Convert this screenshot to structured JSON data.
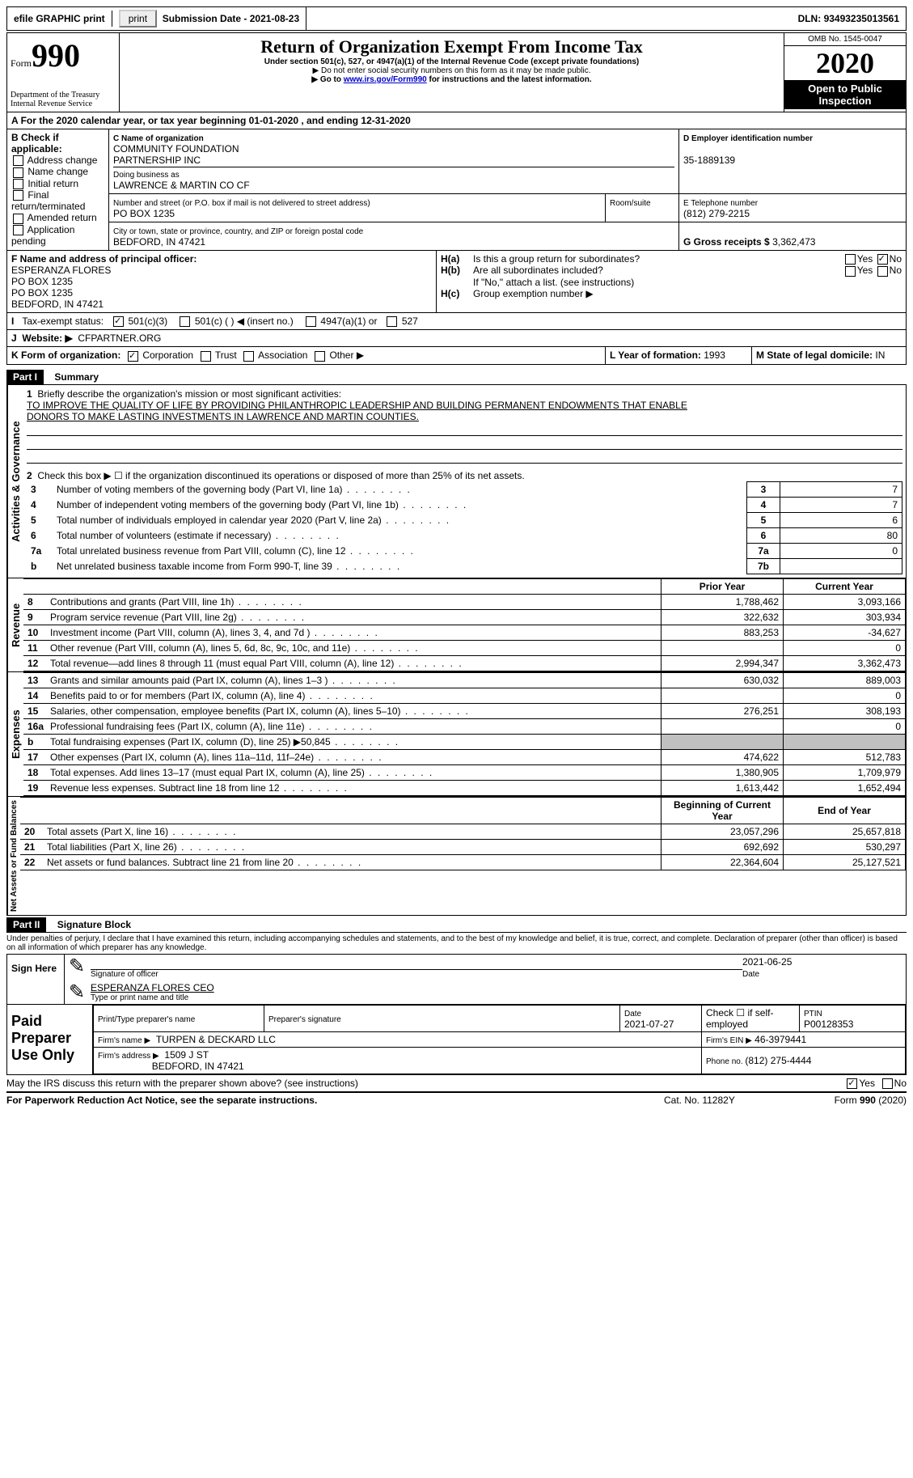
{
  "topbar": {
    "efile": "efile GRAPHIC print",
    "submission_label": "Submission Date - ",
    "submission_date": "2021-08-23",
    "dln_label": "DLN: ",
    "dln": "93493235013561"
  },
  "header": {
    "form_word": "Form",
    "form_num": "990",
    "dept": "Department of the Treasury Internal Revenue Service",
    "title": "Return of Organization Exempt From Income Tax",
    "subtitle": "Under section 501(c), 527, or 4947(a)(1) of the Internal Revenue Code (except private foundations)",
    "note1": "▶ Do not enter social security numbers on this form as it may be made public.",
    "note2_pre": "▶ Go to ",
    "note2_link": "www.irs.gov/Form990",
    "note2_post": " for instructions and the latest information.",
    "omb": "OMB No. 1545-0047",
    "year": "2020",
    "open": "Open to Public Inspection"
  },
  "periodA": "For the 2020 calendar year, or tax year beginning 01-01-2020    , and ending 12-31-2020",
  "blockB": {
    "label": "B Check if applicable:",
    "opts": [
      "Address change",
      "Name change",
      "Initial return",
      "Final return/terminated",
      "Amended return",
      "Application pending"
    ]
  },
  "blockC": {
    "name_label": "C Name of organization",
    "name1": "COMMUNITY FOUNDATION",
    "name2": "PARTNERSHIP INC",
    "dba_label": "Doing business as",
    "dba": "LAWRENCE & MARTIN CO CF",
    "street_label": "Number and street (or P.O. box if mail is not delivered to street address)",
    "street": "PO BOX 1235",
    "room_label": "Room/suite",
    "city_label": "City or town, state or province, country, and ZIP or foreign postal code",
    "city": "BEDFORD, IN  47421"
  },
  "blockD": {
    "label": "D Employer identification number",
    "value": "35-1889139"
  },
  "blockE": {
    "label": "E Telephone number",
    "value": "(812) 279-2215"
  },
  "blockG": {
    "label": "G Gross receipts $ ",
    "value": "3,362,473"
  },
  "blockF": {
    "label": "F Name and address of principal officer:",
    "l1": "ESPERANZA FLORES",
    "l2": "PO BOX 1235",
    "l3": "PO BOX 1235",
    "l4": "BEDFORD, IN  47421"
  },
  "blockH": {
    "a": "Is this a group return for subordinates?",
    "b": "Are all subordinates included?",
    "note": "If \"No,\" attach a list. (see instructions)",
    "c": "Group exemption number ▶"
  },
  "taxexempt": {
    "label": "Tax-exempt status:",
    "o1": "501(c)(3)",
    "o2": "501(c) (  ) ◀ (insert no.)",
    "o3": "4947(a)(1) or",
    "o4": "527"
  },
  "websiteJ": {
    "label": "Website: ▶",
    "value": "CFPARTNER.ORG"
  },
  "formK": {
    "label": "K Form of organization:",
    "o1": "Corporation",
    "o2": "Trust",
    "o3": "Association",
    "o4": "Other ▶"
  },
  "yearL": {
    "label": "L Year of formation: ",
    "value": "1993"
  },
  "stateM": {
    "label": "M State of legal domicile: ",
    "value": "IN"
  },
  "part1": {
    "title": "Part I",
    "subtitle": "Summary",
    "l1": "Briefly describe the organization's mission or most significant activities:",
    "mission1": "TO IMPROVE THE QUALITY OF LIFE BY PROVIDING PHILANTHROPIC LEADERSHIP AND BUILDING PERMANENT ENDOWMENTS THAT ENABLE",
    "mission2": "DONORS TO MAKE LASTING INVESTMENTS IN LAWRENCE AND MARTIN COUNTIES.",
    "l2": "Check this box ▶ ☐  if the organization discontinued its operations or disposed of more than 25% of its net assets.",
    "rows_gov": [
      {
        "n": "3",
        "t": "Number of voting members of the governing body (Part VI, line 1a)",
        "box": "3",
        "v": "7"
      },
      {
        "n": "4",
        "t": "Number of independent voting members of the governing body (Part VI, line 1b)",
        "box": "4",
        "v": "7"
      },
      {
        "n": "5",
        "t": "Total number of individuals employed in calendar year 2020 (Part V, line 2a)",
        "box": "5",
        "v": "6"
      },
      {
        "n": "6",
        "t": "Total number of volunteers (estimate if necessary)",
        "box": "6",
        "v": "80"
      },
      {
        "n": "7a",
        "t": "Total unrelated business revenue from Part VIII, column (C), line 12",
        "box": "7a",
        "v": "0"
      },
      {
        "n": "b",
        "t": "Net unrelated business taxable income from Form 990-T, line 39",
        "box": "7b",
        "v": ""
      }
    ],
    "hdr_prior": "Prior Year",
    "hdr_current": "Current Year",
    "rows_rev": [
      {
        "n": "8",
        "t": "Contributions and grants (Part VIII, line 1h)",
        "p": "1,788,462",
        "c": "3,093,166"
      },
      {
        "n": "9",
        "t": "Program service revenue (Part VIII, line 2g)",
        "p": "322,632",
        "c": "303,934"
      },
      {
        "n": "10",
        "t": "Investment income (Part VIII, column (A), lines 3, 4, and 7d )",
        "p": "883,253",
        "c": "-34,627"
      },
      {
        "n": "11",
        "t": "Other revenue (Part VIII, column (A), lines 5, 6d, 8c, 9c, 10c, and 11e)",
        "p": "",
        "c": "0"
      },
      {
        "n": "12",
        "t": "Total revenue—add lines 8 through 11 (must equal Part VIII, column (A), line 12)",
        "p": "2,994,347",
        "c": "3,362,473"
      }
    ],
    "rows_exp": [
      {
        "n": "13",
        "t": "Grants and similar amounts paid (Part IX, column (A), lines 1–3 )",
        "p": "630,032",
        "c": "889,003"
      },
      {
        "n": "14",
        "t": "Benefits paid to or for members (Part IX, column (A), line 4)",
        "p": "",
        "c": "0"
      },
      {
        "n": "15",
        "t": "Salaries, other compensation, employee benefits (Part IX, column (A), lines 5–10)",
        "p": "276,251",
        "c": "308,193"
      },
      {
        "n": "16a",
        "t": "Professional fundraising fees (Part IX, column (A), line 11e)",
        "p": "",
        "c": "0"
      },
      {
        "n": "b",
        "t": "Total fundraising expenses (Part IX, column (D), line 25) ▶50,845",
        "p": "GREY",
        "c": "GREY"
      },
      {
        "n": "17",
        "t": "Other expenses (Part IX, column (A), lines 11a–11d, 11f–24e)",
        "p": "474,622",
        "c": "512,783"
      },
      {
        "n": "18",
        "t": "Total expenses. Add lines 13–17 (must equal Part IX, column (A), line 25)",
        "p": "1,380,905",
        "c": "1,709,979"
      },
      {
        "n": "19",
        "t": "Revenue less expenses. Subtract line 18 from line 12",
        "p": "1,613,442",
        "c": "1,652,494"
      }
    ],
    "hdr_begin": "Beginning of Current Year",
    "hdr_end": "End of Year",
    "rows_net": [
      {
        "n": "20",
        "t": "Total assets (Part X, line 16)",
        "p": "23,057,296",
        "c": "25,657,818"
      },
      {
        "n": "21",
        "t": "Total liabilities (Part X, line 26)",
        "p": "692,692",
        "c": "530,297"
      },
      {
        "n": "22",
        "t": "Net assets or fund balances. Subtract line 21 from line 20",
        "p": "22,364,604",
        "c": "25,127,521"
      }
    ]
  },
  "part2": {
    "title": "Part II",
    "subtitle": "Signature Block",
    "perjury": "Under penalties of perjury, I declare that I have examined this return, including accompanying schedules and statements, and to the best of my knowledge and belief, it is true, correct, and complete. Declaration of preparer (other than officer) is based on all information of which preparer has any knowledge.",
    "sign_here": "Sign Here",
    "sig_label": "Signature of officer",
    "sig_date": "2021-06-25",
    "date_label": "Date",
    "name_title": "ESPERANZA FLORES CEO",
    "name_title_label": "Type or print name and title",
    "paid": "Paid Preparer Use Only",
    "prep_name_label": "Print/Type preparer's name",
    "prep_sig_label": "Preparer's signature",
    "prep_date_label": "Date",
    "prep_date": "2021-07-27",
    "check_self": "Check ☐ if self-employed",
    "ptin_label": "PTIN",
    "ptin": "P00128353",
    "firm_name_label": "Firm's name   ▶",
    "firm_name": "TURPEN & DECKARD LLC",
    "firm_ein_label": "Firm's EIN ▶",
    "firm_ein": "46-3979441",
    "firm_addr_label": "Firm's address ▶",
    "firm_addr1": "1509 J ST",
    "firm_addr2": "BEDFORD, IN  47421",
    "phone_label": "Phone no. ",
    "phone": "(812) 275-4444"
  },
  "footer": {
    "discuss": "May the IRS discuss this return with the preparer shown above? (see instructions)",
    "paperwork": "For Paperwork Reduction Act Notice, see the separate instructions.",
    "cat": "Cat. No. 11282Y",
    "form": "Form 990 (2020)"
  },
  "yn": {
    "yes": "Yes",
    "no": "No"
  },
  "sidelabels": {
    "gov": "Activities & Governance",
    "rev": "Revenue",
    "exp": "Expenses",
    "net": "Net Assets or Fund Balances"
  }
}
